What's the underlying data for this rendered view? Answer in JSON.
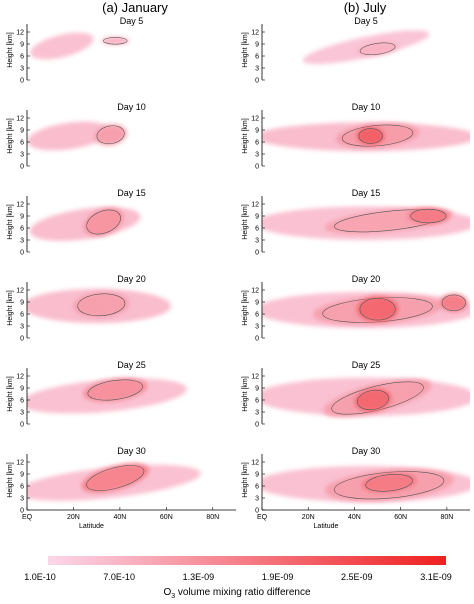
{
  "columns": [
    {
      "title": "(a) January"
    },
    {
      "title": "(b) July"
    }
  ],
  "chart_data": {
    "type": "heatmap",
    "variable": "O3 volume mixing ratio difference",
    "xlabel": "Latitude",
    "ylabel": "Height [km]",
    "x_ticks": [
      "EQ",
      "20N",
      "40N",
      "60N",
      "80N"
    ],
    "x_range": [
      0,
      90
    ],
    "y_ticks": [
      0,
      3,
      6,
      9,
      12
    ],
    "y_range": [
      0,
      13
    ],
    "panel_titles": [
      "Day 5",
      "Day 10",
      "Day 15",
      "Day 20",
      "Day 25",
      "Day 30"
    ],
    "colorbar": {
      "ticks": [
        "1.0E-10",
        "7.0E-10",
        "1.3E-09",
        "1.9E-09",
        "2.5E-09",
        "3.1E-09"
      ],
      "values": [
        1e-10,
        7e-10,
        1.3e-09,
        1.9e-09,
        2.5e-09,
        3.1e-09
      ],
      "color_low": "#fbd7ea",
      "color_high": "#ef2020"
    },
    "panels": {
      "january": [
        {
          "day": "Day 5",
          "blobs": [
            {
              "lat": 15,
              "h": 8.5,
              "rl": 14,
              "rh": 2.8,
              "rot": -14,
              "level": 0.12
            },
            {
              "lat": 38,
              "h": 9.8,
              "rl": 6,
              "rh": 1.0,
              "rot": 0,
              "level": 0.2
            }
          ]
        },
        {
          "day": "Day 10",
          "blobs": [
            {
              "lat": 18,
              "h": 7.5,
              "rl": 18,
              "rh": 3.3,
              "rot": -8,
              "level": 0.14
            },
            {
              "lat": 36,
              "h": 7.8,
              "rl": 7,
              "rh": 2.6,
              "rot": -10,
              "level": 0.3
            }
          ]
        },
        {
          "day": "Day 15",
          "blobs": [
            {
              "lat": 25,
              "h": 7,
              "rl": 24,
              "rh": 3.8,
              "rot": -8,
              "level": 0.14
            },
            {
              "lat": 33,
              "h": 7.5,
              "rl": 9,
              "rh": 3.2,
              "rot": -22,
              "level": 0.36
            }
          ]
        },
        {
          "day": "Day 20",
          "blobs": [
            {
              "lat": 30,
              "h": 8,
              "rl": 32,
              "rh": 4.3,
              "rot": 0,
              "level": 0.14
            },
            {
              "lat": 32,
              "h": 8.3,
              "rl": 12,
              "rh": 3.2,
              "rot": -4,
              "level": 0.3
            }
          ]
        },
        {
          "day": "Day 25",
          "blobs": [
            {
              "lat": 33,
              "h": 7,
              "rl": 36,
              "rh": 4.0,
              "rot": -5,
              "level": 0.12
            },
            {
              "lat": 38,
              "h": 8.5,
              "rl": 14,
              "rh": 2.8,
              "rot": -8,
              "level": 0.38
            }
          ]
        },
        {
          "day": "Day 30",
          "blobs": [
            {
              "lat": 35,
              "h": 6.8,
              "rl": 40,
              "rh": 3.8,
              "rot": -6,
              "level": 0.12
            },
            {
              "lat": 38,
              "h": 8,
              "rl": 15,
              "rh": 3.0,
              "rot": -15,
              "level": 0.45
            }
          ]
        }
      ],
      "july": [
        {
          "day": "Day 5",
          "blobs": [
            {
              "lat": 45,
              "h": 8.2,
              "rl": 28,
              "rh": 2.6,
              "rot": -12,
              "level": 0.1
            },
            {
              "lat": 50,
              "h": 7.8,
              "rl": 9,
              "rh": 1.6,
              "rot": -8,
              "level": 0.2
            }
          ]
        },
        {
          "day": "Day 10",
          "blobs": [
            {
              "lat": 45,
              "h": 7.3,
              "rl": 48,
              "rh": 3.6,
              "rot": 0,
              "level": 0.14
            },
            {
              "lat": 50,
              "h": 7.6,
              "rl": 18,
              "rh": 3.0,
              "rot": -5,
              "level": 0.32
            },
            {
              "lat": 47,
              "h": 7.5,
              "rl": 6,
              "rh": 2.2,
              "rot": 0,
              "level": 0.65
            }
          ]
        },
        {
          "day": "Day 15",
          "blobs": [
            {
              "lat": 45,
              "h": 7.2,
              "rl": 48,
              "rh": 4.2,
              "rot": 0,
              "level": 0.12
            },
            {
              "lat": 55,
              "h": 7.8,
              "rl": 28,
              "rh": 2.8,
              "rot": -6,
              "level": 0.28
            },
            {
              "lat": 72,
              "h": 9,
              "rl": 9,
              "rh": 2.0,
              "rot": 0,
              "level": 0.5
            }
          ]
        },
        {
          "day": "Day 20",
          "blobs": [
            {
              "lat": 45,
              "h": 7,
              "rl": 48,
              "rh": 4.5,
              "rot": 0,
              "level": 0.12
            },
            {
              "lat": 50,
              "h": 7,
              "rl": 28,
              "rh": 3.5,
              "rot": -4,
              "level": 0.3
            },
            {
              "lat": 50,
              "h": 7.2,
              "rl": 9,
              "rh": 3.2,
              "rot": 0,
              "level": 0.6
            },
            {
              "lat": 83,
              "h": 8.8,
              "rl": 6,
              "rh": 2.3,
              "rot": 0,
              "level": 0.48
            }
          ]
        },
        {
          "day": "Day 25",
          "blobs": [
            {
              "lat": 45,
              "h": 6.8,
              "rl": 48,
              "rh": 4.8,
              "rot": 0,
              "level": 0.12
            },
            {
              "lat": 50,
              "h": 6.5,
              "rl": 24,
              "rh": 3.5,
              "rot": -14,
              "level": 0.3
            },
            {
              "lat": 48,
              "h": 6,
              "rl": 8,
              "rh": 2.8,
              "rot": -10,
              "level": 0.6
            }
          ]
        },
        {
          "day": "Day 30",
          "blobs": [
            {
              "lat": 45,
              "h": 6.5,
              "rl": 48,
              "rh": 4.5,
              "rot": 0,
              "level": 0.12
            },
            {
              "lat": 55,
              "h": 6.2,
              "rl": 28,
              "rh": 3.8,
              "rot": -5,
              "level": 0.3
            },
            {
              "lat": 55,
              "h": 6.8,
              "rl": 12,
              "rh": 2.4,
              "rot": -6,
              "level": 0.5
            }
          ]
        }
      ]
    }
  }
}
